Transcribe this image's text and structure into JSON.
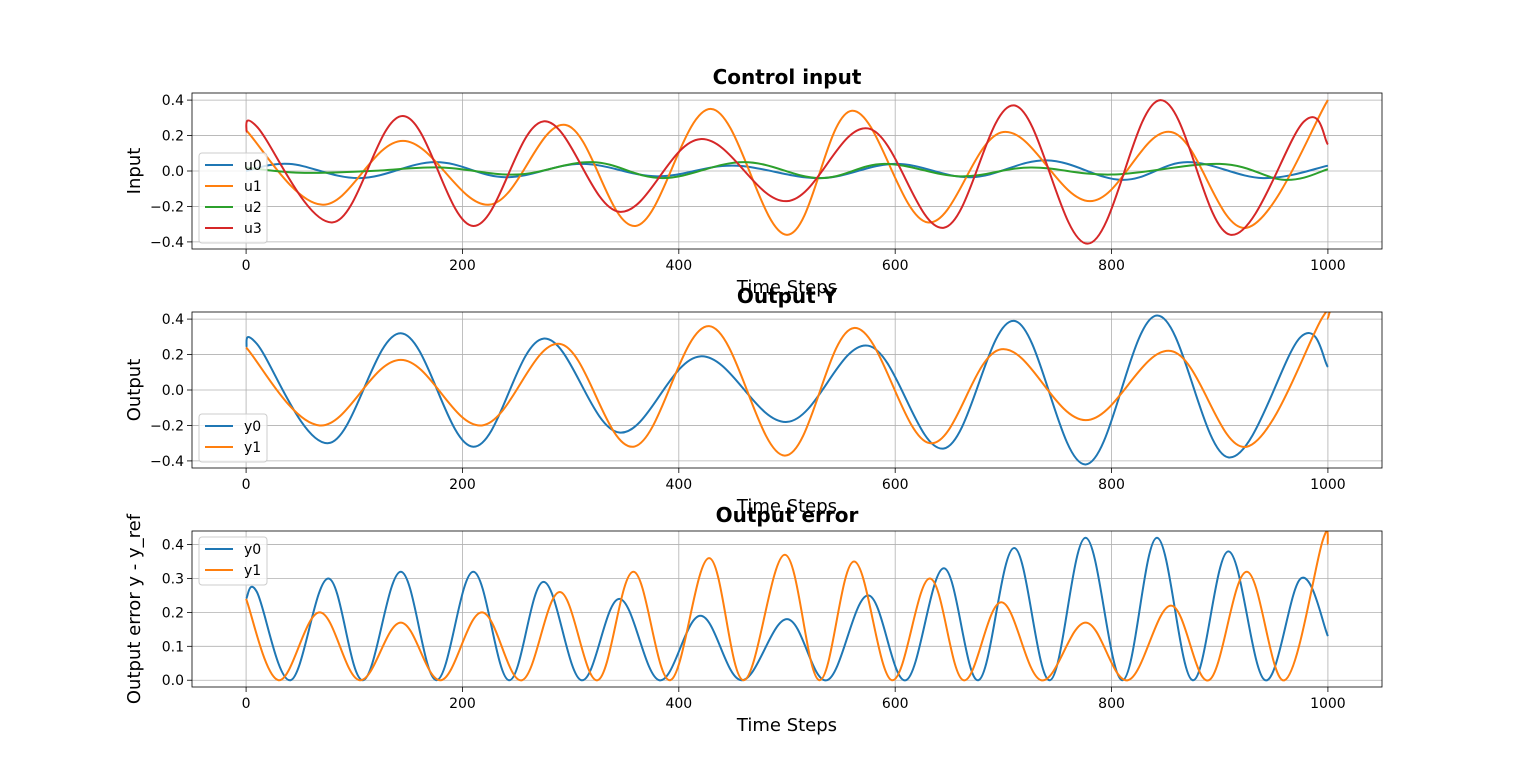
{
  "chart_data": [
    {
      "type": "line",
      "title": "Control input",
      "xlabel": "Time Steps",
      "ylabel": "Input",
      "xlim": [
        -50,
        1050
      ],
      "ylim": [
        -0.44,
        0.44
      ],
      "xticks": [
        "0",
        "200",
        "400",
        "600",
        "800",
        "1000"
      ],
      "yticks": [
        "−0.4",
        "−0.2",
        "0.0",
        "0.2",
        "0.4"
      ],
      "grid": true,
      "legend_position": "lower-left",
      "series": [
        {
          "name": "u0",
          "color": "#1f77b4",
          "x": [
            0,
            40,
            105,
            175,
            240,
            310,
            380,
            450,
            530,
            600,
            670,
            740,
            810,
            870,
            940,
            1000
          ],
          "y": [
            0.0,
            0.04,
            -0.04,
            0.05,
            -0.035,
            0.04,
            -0.03,
            0.03,
            -0.04,
            0.04,
            -0.035,
            0.06,
            -0.05,
            0.05,
            -0.04,
            0.03
          ]
        },
        {
          "name": "u1",
          "color": "#ff7f0e",
          "x": [
            0,
            70,
            145,
            225,
            295,
            360,
            430,
            500,
            560,
            630,
            700,
            780,
            855,
            925,
            1000
          ],
          "y": [
            0.23,
            -0.19,
            0.17,
            -0.19,
            0.26,
            -0.31,
            0.35,
            -0.36,
            0.34,
            -0.29,
            0.22,
            -0.17,
            0.22,
            -0.32,
            0.4
          ]
        },
        {
          "name": "u2",
          "color": "#2ca02c",
          "x": [
            0,
            50,
            115,
            180,
            250,
            320,
            385,
            460,
            530,
            590,
            660,
            725,
            800,
            900,
            960,
            1000
          ],
          "y": [
            0.02,
            -0.01,
            0.0,
            0.02,
            -0.02,
            0.05,
            -0.04,
            0.05,
            -0.04,
            0.04,
            -0.03,
            0.02,
            -0.02,
            0.04,
            -0.05,
            0.01
          ]
        },
        {
          "name": "u3",
          "color": "#d62728",
          "x": [
            0,
            10,
            80,
            145,
            210,
            275,
            345,
            420,
            500,
            575,
            645,
            710,
            778,
            845,
            910,
            978,
            1000
          ],
          "y": [
            0.22,
            0.25,
            -0.29,
            0.31,
            -0.31,
            0.28,
            -0.23,
            0.18,
            -0.17,
            0.24,
            -0.32,
            0.37,
            -0.41,
            0.4,
            -0.36,
            0.28,
            0.15
          ]
        }
      ]
    },
    {
      "type": "line",
      "title": "Output Y",
      "xlabel": "Time Steps",
      "ylabel": "Output",
      "xlim": [
        -50,
        1050
      ],
      "ylim": [
        -0.44,
        0.44
      ],
      "xticks": [
        "0",
        "200",
        "400",
        "600",
        "800",
        "1000"
      ],
      "yticks": [
        "−0.4",
        "−0.2",
        "0.0",
        "0.2",
        "0.4"
      ],
      "grid": true,
      "legend_position": "lower-left",
      "series": [
        {
          "name": "y0",
          "color": "#1f77b4",
          "x": [
            0,
            10,
            76,
            143,
            210,
            275,
            345,
            420,
            500,
            575,
            645,
            710,
            776,
            842,
            908,
            975,
            1000
          ],
          "y": [
            0.24,
            0.26,
            -0.3,
            0.32,
            -0.32,
            0.29,
            -0.24,
            0.19,
            -0.18,
            0.25,
            -0.33,
            0.39,
            -0.42,
            0.42,
            -0.38,
            0.3,
            0.13
          ]
        },
        {
          "name": "y1",
          "color": "#ff7f0e",
          "x": [
            0,
            68,
            143,
            218,
            290,
            358,
            428,
            498,
            562,
            632,
            698,
            776,
            855,
            925,
            995,
            1000
          ],
          "y": [
            0.24,
            -0.2,
            0.17,
            -0.2,
            0.26,
            -0.32,
            0.36,
            -0.37,
            0.35,
            -0.3,
            0.23,
            -0.17,
            0.22,
            -0.32,
            0.41,
            0.4
          ]
        }
      ]
    },
    {
      "type": "line",
      "title": "Output error",
      "xlabel": "Time Steps",
      "ylabel": "Output error y - y_ref",
      "xlim": [
        -50,
        1050
      ],
      "ylim": [
        -0.02,
        0.44
      ],
      "xticks": [
        "0",
        "200",
        "400",
        "600",
        "800",
        "1000"
      ],
      "yticks": [
        "0.0",
        "0.1",
        "0.2",
        "0.3",
        "0.4"
      ],
      "grid": true,
      "legend_position": "upper-left",
      "series": [
        {
          "name": "y0",
          "color": "#1f77b4",
          "x": [
            0,
            10,
            41,
            76,
            108,
            143,
            176,
            210,
            243,
            275,
            310,
            345,
            382,
            420,
            458,
            500,
            537,
            575,
            610,
            645,
            677,
            710,
            743,
            776,
            810,
            842,
            875,
            908,
            942,
            975,
            1000
          ],
          "y": [
            0.24,
            0.26,
            0.0,
            0.3,
            0.0,
            0.32,
            0.0,
            0.32,
            0.0,
            0.29,
            0.0,
            0.24,
            0.0,
            0.19,
            0.0,
            0.18,
            0.0,
            0.25,
            0.0,
            0.33,
            0.0,
            0.39,
            0.0,
            0.42,
            0.0,
            0.42,
            0.0,
            0.38,
            0.0,
            0.3,
            0.13
          ]
        },
        {
          "name": "y1",
          "color": "#ff7f0e",
          "x": [
            0,
            30,
            68,
            105,
            143,
            180,
            218,
            255,
            290,
            325,
            358,
            392,
            428,
            460,
            498,
            530,
            562,
            597,
            632,
            663,
            698,
            735,
            776,
            815,
            855,
            890,
            925,
            960,
            995,
            1000
          ],
          "y": [
            0.24,
            0.0,
            0.2,
            0.0,
            0.17,
            0.0,
            0.2,
            0.0,
            0.26,
            0.0,
            0.32,
            0.0,
            0.36,
            0.0,
            0.37,
            0.0,
            0.35,
            0.0,
            0.3,
            0.0,
            0.23,
            0.0,
            0.17,
            0.0,
            0.22,
            0.0,
            0.32,
            0.0,
            0.41,
            0.4
          ]
        }
      ]
    }
  ]
}
